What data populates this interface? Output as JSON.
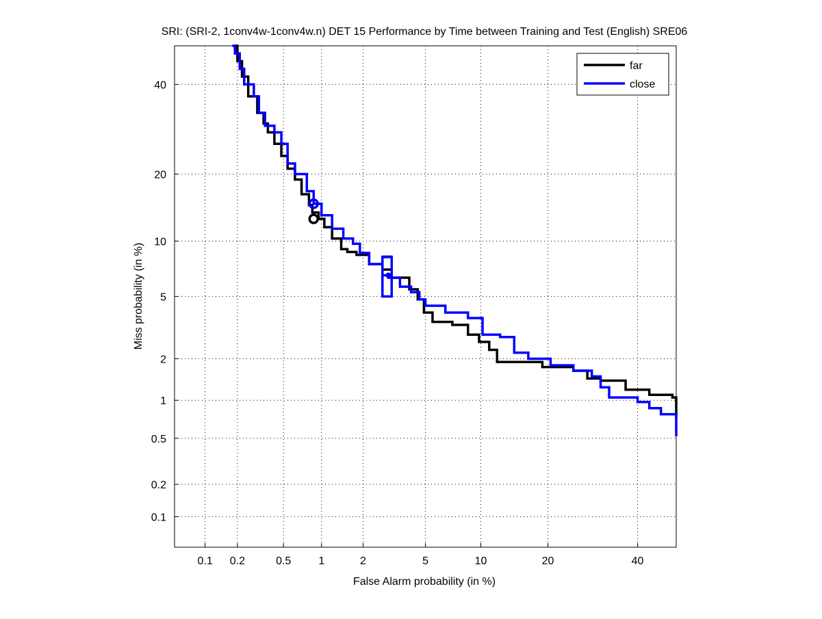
{
  "chart_data": {
    "type": "line",
    "title": "SRI: (SRI-2, 1conv4w-1conv4w.n) DET 15 Performance by Time between Training and Test (English) SRE06",
    "xlabel": "False Alarm probability (in %)",
    "ylabel": "Miss probability (in %)",
    "scale": "normal-deviate",
    "xlim": [
      0.05,
      50
    ],
    "ylim": [
      0.05,
      50
    ],
    "xticks": [
      0.1,
      0.2,
      0.5,
      1,
      2,
      5,
      10,
      20,
      40
    ],
    "xtick_labels": [
      "0.1",
      "0.2",
      "0.5",
      "1",
      "2",
      "5",
      "10",
      "20",
      "40"
    ],
    "yticks": [
      0.1,
      0.2,
      0.5,
      1,
      2,
      5,
      10,
      20,
      40
    ],
    "ytick_labels": [
      "0.1",
      "0.2",
      "0.5",
      "1",
      "2",
      "5",
      "10",
      "20",
      "40"
    ],
    "grid": true,
    "legend_position": "top-right",
    "series": [
      {
        "name": "far",
        "color": "#000000",
        "x": [
          0.18,
          0.2,
          0.22,
          0.25,
          0.3,
          0.34,
          0.37,
          0.42,
          0.48,
          0.54,
          0.62,
          0.7,
          0.8,
          0.85,
          0.95,
          1.05,
          1.2,
          1.4,
          1.55,
          1.8,
          2.2,
          2.7,
          3.1,
          4.0,
          4.5,
          4.9,
          5.5,
          7.1,
          8.6,
          9.8,
          11,
          12,
          15.5,
          19,
          25,
          28,
          31,
          37,
          43,
          49,
          50
        ],
        "y": [
          50,
          46,
          42,
          37,
          33,
          30.5,
          28.5,
          26,
          23.5,
          21,
          19,
          16.5,
          14.8,
          13.7,
          12.8,
          11.7,
          10.3,
          9.1,
          8.8,
          8.5,
          7.6,
          7.1,
          6.4,
          5.5,
          4.8,
          4.0,
          3.5,
          3.35,
          2.9,
          2.6,
          2.3,
          1.9,
          1.9,
          1.75,
          1.65,
          1.45,
          1.4,
          1.2,
          1.1,
          1.05,
          0.72
        ],
        "marker_point": {
          "x": 0.87,
          "y": 12.8
        }
      },
      {
        "name": "close",
        "color": "#0000ff",
        "x": [
          0.18,
          0.19,
          0.21,
          0.23,
          0.28,
          0.31,
          0.35,
          0.42,
          0.48,
          0.54,
          0.62,
          0.77,
          0.87,
          1.0,
          1.2,
          1.45,
          1.7,
          1.9,
          2.2,
          2.7,
          2.95,
          3.5,
          4.1,
          4.6,
          5.0,
          6.5,
          8.6,
          10.2,
          12.4,
          14.4,
          16.6,
          20.5,
          25,
          29,
          31,
          33,
          37,
          40,
          43,
          46,
          50
        ],
        "y": [
          50,
          48,
          44,
          40,
          37,
          33,
          30,
          28.5,
          26,
          22,
          20,
          17,
          15,
          13.3,
          11.5,
          10.3,
          9.7,
          8.7,
          7.6,
          6.6,
          6.4,
          5.7,
          5.3,
          4.8,
          4.4,
          4.0,
          3.7,
          2.9,
          2.8,
          2.2,
          2.0,
          1.8,
          1.65,
          1.5,
          1.25,
          1.05,
          1.05,
          0.97,
          0.87,
          0.78,
          0.52
        ],
        "marker_point": {
          "x": 0.87,
          "y": 15
        },
        "confidence_box": {
          "x": [
            2.7,
            3.1
          ],
          "y": [
            5.0,
            8.3
          ],
          "center": {
            "x": 2.95,
            "y": 6.6
          }
        }
      }
    ],
    "far_box_top": {
      "x": [
        2.7,
        3.1
      ],
      "y": 8.3
    }
  }
}
